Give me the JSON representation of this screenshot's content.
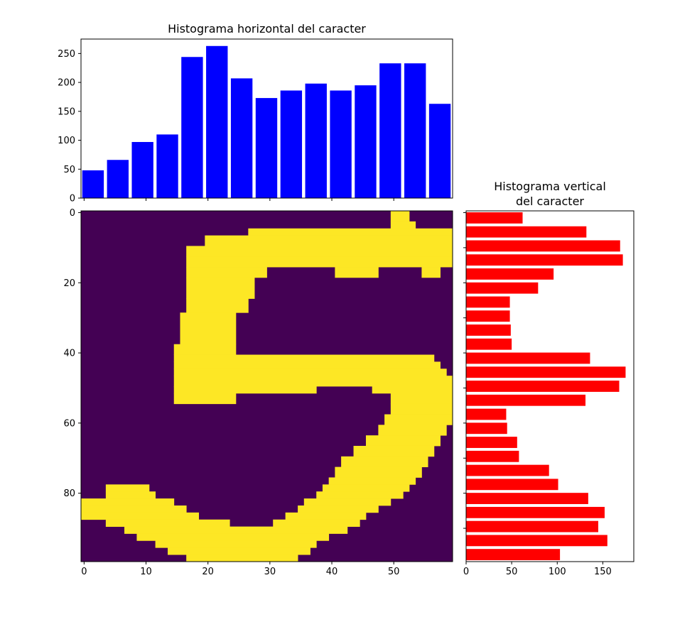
{
  "chart_data": [
    {
      "type": "bar",
      "title": "Histograma horizontal del caracter",
      "xlabel": "",
      "ylabel": "",
      "bin_starts": [
        0,
        4,
        8,
        12,
        16,
        20,
        24,
        28,
        32,
        36,
        40,
        44,
        48,
        52,
        56
      ],
      "bin_width": 4,
      "values": [
        48,
        66,
        97,
        110,
        244,
        263,
        207,
        173,
        186,
        198,
        186,
        195,
        233,
        233,
        163
      ],
      "ylim": [
        0,
        275
      ],
      "yticks": [
        "0",
        "50",
        "100",
        "150",
        "200",
        "250"
      ],
      "color": "#0000ff"
    },
    {
      "type": "bar",
      "orientation": "horizontal",
      "title": "Histograma vertical\ndel caracter",
      "title_lines": [
        "Histograma vertical",
        "del caracter"
      ],
      "values": [
        62,
        132,
        169,
        172,
        96,
        79,
        48,
        48,
        49,
        50,
        136,
        175,
        168,
        131,
        44,
        45,
        56,
        58,
        91,
        101,
        134,
        152,
        145,
        155,
        103
      ],
      "xlim": [
        0,
        184
      ],
      "xticks": [
        "0",
        "50",
        "100",
        "150"
      ],
      "color": "#ff0000"
    },
    {
      "type": "heatmap",
      "rows": 100,
      "cols": 60,
      "xticks": [
        "0",
        "10",
        "20",
        "30",
        "40",
        "50"
      ],
      "yticks": [
        "0",
        "20",
        "40",
        "60",
        "80"
      ],
      "colors": {
        "background": "#440154",
        "stroke": "#fde725"
      },
      "stroke_rows": [
        {
          "y0": 0,
          "y1": 3,
          "segs": [
            [
              50,
              53
            ]
          ]
        },
        {
          "y0": 3,
          "y1": 5,
          "segs": [
            [
              50,
              54
            ]
          ]
        },
        {
          "y0": 5,
          "y1": 7,
          "segs": [
            [
              27,
              60
            ]
          ]
        },
        {
          "y0": 7,
          "y1": 10,
          "segs": [
            [
              20,
              60
            ]
          ]
        },
        {
          "y0": 10,
          "y1": 13,
          "segs": [
            [
              17,
              60
            ]
          ]
        },
        {
          "y0": 13,
          "y1": 16,
          "segs": [
            [
              17,
              60
            ]
          ]
        },
        {
          "y0": 16,
          "y1": 19,
          "segs": [
            [
              17,
              30
            ],
            [
              41,
              48
            ],
            [
              55,
              58
            ]
          ]
        },
        {
          "y0": 19,
          "y1": 25,
          "segs": [
            [
              17,
              28
            ]
          ]
        },
        {
          "y0": 25,
          "y1": 29,
          "segs": [
            [
              17,
              27
            ]
          ]
        },
        {
          "y0": 29,
          "y1": 38,
          "segs": [
            [
              16,
              25
            ]
          ]
        },
        {
          "y0": 38,
          "y1": 41,
          "segs": [
            [
              15,
              25
            ]
          ]
        },
        {
          "y0": 41,
          "y1": 43,
          "segs": [
            [
              15,
              57
            ]
          ]
        },
        {
          "y0": 43,
          "y1": 45,
          "segs": [
            [
              15,
              58
            ]
          ]
        },
        {
          "y0": 45,
          "y1": 47,
          "segs": [
            [
              15,
              59
            ]
          ]
        },
        {
          "y0": 47,
          "y1": 50,
          "segs": [
            [
              15,
              60
            ]
          ]
        },
        {
          "y0": 50,
          "y1": 52,
          "segs": [
            [
              15,
              38
            ],
            [
              47,
              60
            ]
          ]
        },
        {
          "y0": 52,
          "y1": 55,
          "segs": [
            [
              15,
              25
            ],
            [
              50,
              60
            ]
          ]
        },
        {
          "y0": 55,
          "y1": 58,
          "segs": [
            [
              50,
              60
            ]
          ]
        },
        {
          "y0": 58,
          "y1": 61,
          "segs": [
            [
              49,
              60
            ]
          ]
        },
        {
          "y0": 61,
          "y1": 64,
          "segs": [
            [
              48,
              59
            ]
          ]
        },
        {
          "y0": 64,
          "y1": 67,
          "segs": [
            [
              46,
              58
            ]
          ]
        },
        {
          "y0": 67,
          "y1": 70,
          "segs": [
            [
              44,
              57
            ]
          ]
        },
        {
          "y0": 70,
          "y1": 73,
          "segs": [
            [
              42,
              56
            ]
          ]
        },
        {
          "y0": 73,
          "y1": 76,
          "segs": [
            [
              41,
              55
            ]
          ]
        },
        {
          "y0": 76,
          "y1": 78,
          "segs": [
            [
              40,
              54
            ]
          ]
        },
        {
          "y0": 78,
          "y1": 80,
          "segs": [
            [
              4,
              11
            ],
            [
              39,
              53
            ]
          ]
        },
        {
          "y0": 80,
          "y1": 82,
          "segs": [
            [
              4,
              12
            ],
            [
              38,
              52
            ]
          ]
        },
        {
          "y0": 82,
          "y1": 84,
          "segs": [
            [
              0,
              15
            ],
            [
              36,
              50
            ]
          ]
        },
        {
          "y0": 84,
          "y1": 86,
          "segs": [
            [
              0,
              17
            ],
            [
              35,
              48
            ]
          ]
        },
        {
          "y0": 86,
          "y1": 88,
          "segs": [
            [
              0,
              19
            ],
            [
              33,
              46
            ]
          ]
        },
        {
          "y0": 88,
          "y1": 90,
          "segs": [
            [
              4,
              24
            ],
            [
              31,
              45
            ]
          ]
        },
        {
          "y0": 90,
          "y1": 92,
          "segs": [
            [
              7,
              43
            ]
          ]
        },
        {
          "y0": 92,
          "y1": 94,
          "segs": [
            [
              9,
              40
            ]
          ]
        },
        {
          "y0": 94,
          "y1": 96,
          "segs": [
            [
              12,
              38
            ]
          ]
        },
        {
          "y0": 96,
          "y1": 98,
          "segs": [
            [
              14,
              37
            ]
          ]
        },
        {
          "y0": 98,
          "y1": 100,
          "segs": [
            [
              17,
              35
            ]
          ]
        }
      ]
    }
  ]
}
